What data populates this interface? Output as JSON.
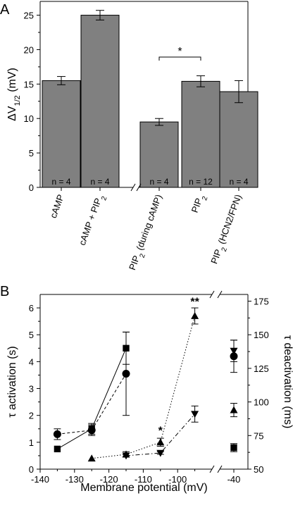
{
  "panels": {
    "a_letter": "A",
    "b_letter": "B"
  },
  "chart_data": [
    {
      "type": "bar",
      "panel": "A",
      "ylabel_main": "ΔV",
      "ylabel_sub": "1/2",
      "ylabel_unit": " (mV)",
      "ylim": [
        0,
        27
      ],
      "yticks": [
        0,
        5,
        10,
        15,
        20,
        25
      ],
      "bar_color": "#808080",
      "axis_break_after_index": 1,
      "bars": [
        {
          "label": "cAMP",
          "label_sub": "",
          "label_tail": "",
          "value": 15.5,
          "error": 0.6,
          "n_label": "n = 4"
        },
        {
          "label": "cAMP + PIP",
          "label_sub": "2",
          "label_tail": "",
          "value": 25.0,
          "error": 0.7,
          "n_label": "n = 4"
        },
        {
          "label": "PIP",
          "label_sub": "2",
          "label_tail": " (during cAMP)",
          "value": 9.5,
          "error": 0.5,
          "n_label": "n = 4"
        },
        {
          "label": "PIP",
          "label_sub": "2",
          "label_tail": "",
          "value": 15.4,
          "error": 0.8,
          "n_label": "n = 12"
        },
        {
          "label": "PIP",
          "label_sub": "2",
          "label_tail": " (HCN2/FPN)",
          "value": 13.9,
          "error": 1.6,
          "n_label": "n = 4"
        }
      ],
      "significance": {
        "from_index": 2,
        "to_index": 3,
        "label": "*"
      }
    },
    {
      "type": "scatter",
      "panel": "B",
      "xlabel": "Membrane potential (mV)",
      "ylabel_left": "τ activation (s)",
      "ylabel_right": "τ deactivation (ms)",
      "xticks": [
        -140,
        -130,
        -120,
        -110,
        -100,
        -40
      ],
      "xlim_segment1": [
        -140,
        -90
      ],
      "x_break_segment2": -40,
      "ylim_left": [
        0,
        6.5
      ],
      "yticks_left": [
        0,
        1,
        2,
        3,
        4,
        5,
        6
      ],
      "ylim_right": [
        50,
        180
      ],
      "yticks_right": [
        50,
        75,
        100,
        125,
        150,
        175
      ],
      "series": [
        {
          "marker": "square",
          "line": "solid",
          "axis": "left",
          "points": [
            {
              "x": -135,
              "y": 0.75,
              "err": 0
            },
            {
              "x": -125,
              "y": 1.5,
              "err": 0.2
            },
            {
              "x": -115,
              "y": 4.5,
              "err": 0.6
            }
          ],
          "separate": {
            "x": -40,
            "y": 0.8,
            "err": 0.15
          }
        },
        {
          "marker": "circle",
          "line": "dashed",
          "axis": "left",
          "points": [
            {
              "x": -135,
              "y": 1.3,
              "err": 0.2
            },
            {
              "x": -125,
              "y": 1.45,
              "err": 0.2
            },
            {
              "x": -115,
              "y": 3.55,
              "err": 1.55
            }
          ],
          "separate": {
            "x": -40,
            "y": 4.2,
            "err": 0.6
          }
        },
        {
          "marker": "triangle-up",
          "line": "dotted",
          "axis": "right",
          "points": [
            {
              "x": -125,
              "y": 58,
              "err": 0
            },
            {
              "x": -115,
              "y": 61,
              "err": 2
            },
            {
              "x": -105,
              "y": 70,
              "err": 3
            },
            {
              "x": -95,
              "y": 164,
              "err": 6
            }
          ],
          "separate": {
            "x": -40,
            "y": 94,
            "err": 5
          }
        },
        {
          "marker": "triangle-down",
          "line": "dashdot",
          "axis": "right",
          "points": [
            {
              "x": -115,
              "y": 60,
              "err": 0
            },
            {
              "x": -105,
              "y": 62,
              "err": 1
            },
            {
              "x": -95,
              "y": 91,
              "err": 6
            }
          ],
          "separate": {
            "x": -40,
            "y": 138,
            "err": 8
          }
        }
      ],
      "annotations": [
        {
          "label": "*",
          "x": -105,
          "axis": "right",
          "y": 76
        },
        {
          "label": "**",
          "x": -95,
          "axis": "right",
          "y": 172
        }
      ]
    }
  ]
}
